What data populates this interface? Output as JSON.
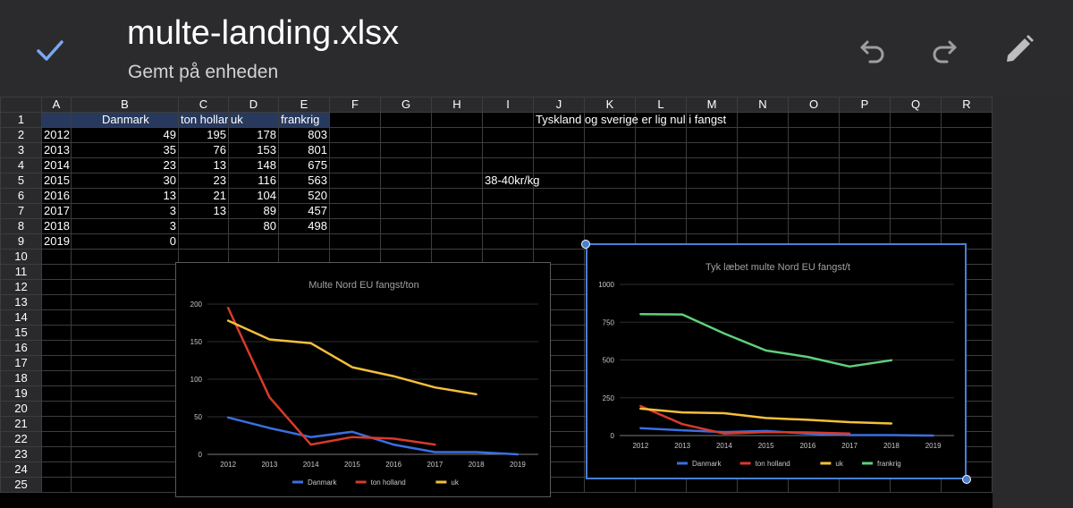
{
  "app": {
    "filename": "multe-landing.xlsx",
    "save_status": "Gemt på enheden",
    "accent_color": "#4a7fd4",
    "icons": [
      "check-icon",
      "undo-icon",
      "redo-icon",
      "edit-pencil-icon"
    ]
  },
  "sheet": {
    "columns": [
      "A",
      "B",
      "C",
      "D",
      "E",
      "F",
      "G",
      "H",
      "I",
      "J",
      "K",
      "L",
      "M",
      "N",
      "O",
      "P",
      "Q",
      "R"
    ],
    "row_numbers": [
      "1",
      "2",
      "3",
      "4",
      "5",
      "6",
      "7",
      "8",
      "9",
      "10",
      "11",
      "12",
      "13",
      "14",
      "15",
      "16",
      "17",
      "18",
      "19",
      "20",
      "21",
      "22",
      "23",
      "24",
      "25"
    ],
    "header_row": {
      "B": "Danmark",
      "C": "ton hollar",
      "D": "uk",
      "E": "frankrig"
    },
    "data_rows": [
      {
        "A": "2012",
        "B": "49",
        "C": "195",
        "D": "178",
        "E": "803"
      },
      {
        "A": "2013",
        "B": "35",
        "C": "76",
        "D": "153",
        "E": "801"
      },
      {
        "A": "2014",
        "B": "23",
        "C": "13",
        "D": "148",
        "E": "675"
      },
      {
        "A": "2015",
        "B": "30",
        "C": "23",
        "D": "116",
        "E": "563"
      },
      {
        "A": "2016",
        "B": "13",
        "C": "21",
        "D": "104",
        "E": "520"
      },
      {
        "A": "2017",
        "B": "3",
        "C": "13",
        "D": "89",
        "E": "457"
      },
      {
        "A": "2018",
        "B": "3",
        "C": "",
        "D": "80",
        "E": "498"
      },
      {
        "A": "2019",
        "B": "0",
        "C": "",
        "D": "",
        "E": ""
      }
    ],
    "notes": {
      "J1": "Tyskland og sverige er lig nul i fangst",
      "I5": "38-40kr/kg"
    }
  },
  "chart_data": [
    {
      "type": "line",
      "title": "Multe Nord EU fangst/ton",
      "x": [
        "2012",
        "2013",
        "2014",
        "2015",
        "2016",
        "2017",
        "2018",
        "2019"
      ],
      "ylim": [
        0,
        200
      ],
      "yticks": [
        "0",
        "50",
        "100",
        "150",
        "200"
      ],
      "grid": true,
      "legend": "bottom",
      "series": [
        {
          "name": "Danmark",
          "color": "#3b6fe0",
          "values": [
            49,
            35,
            23,
            30,
            13,
            3,
            3,
            0
          ]
        },
        {
          "name": "ton holland",
          "color": "#d93a2b",
          "values": [
            195,
            76,
            13,
            23,
            21,
            13,
            null,
            null
          ]
        },
        {
          "name": "uk",
          "color": "#f4bf3a",
          "values": [
            178,
            153,
            148,
            116,
            104,
            89,
            80,
            null
          ]
        }
      ]
    },
    {
      "type": "line",
      "title": "Tyk læbet multe Nord EU fangst/t",
      "x": [
        "2012",
        "2013",
        "2014",
        "2015",
        "2016",
        "2017",
        "2018",
        "2019"
      ],
      "ylim": [
        0,
        1000
      ],
      "yticks": [
        "0",
        "250",
        "500",
        "750",
        "1000"
      ],
      "grid": true,
      "legend": "bottom",
      "series": [
        {
          "name": "Danmark",
          "color": "#3b6fe0",
          "values": [
            49,
            35,
            23,
            30,
            13,
            3,
            3,
            0
          ]
        },
        {
          "name": "ton holland",
          "color": "#d93a2b",
          "values": [
            195,
            76,
            13,
            23,
            21,
            13,
            null,
            null
          ]
        },
        {
          "name": "uk",
          "color": "#f4bf3a",
          "values": [
            178,
            153,
            148,
            116,
            104,
            89,
            80,
            null
          ]
        },
        {
          "name": "frankrig",
          "color": "#5fd07a",
          "values": [
            803,
            801,
            675,
            563,
            520,
            457,
            498,
            null
          ]
        }
      ]
    }
  ]
}
